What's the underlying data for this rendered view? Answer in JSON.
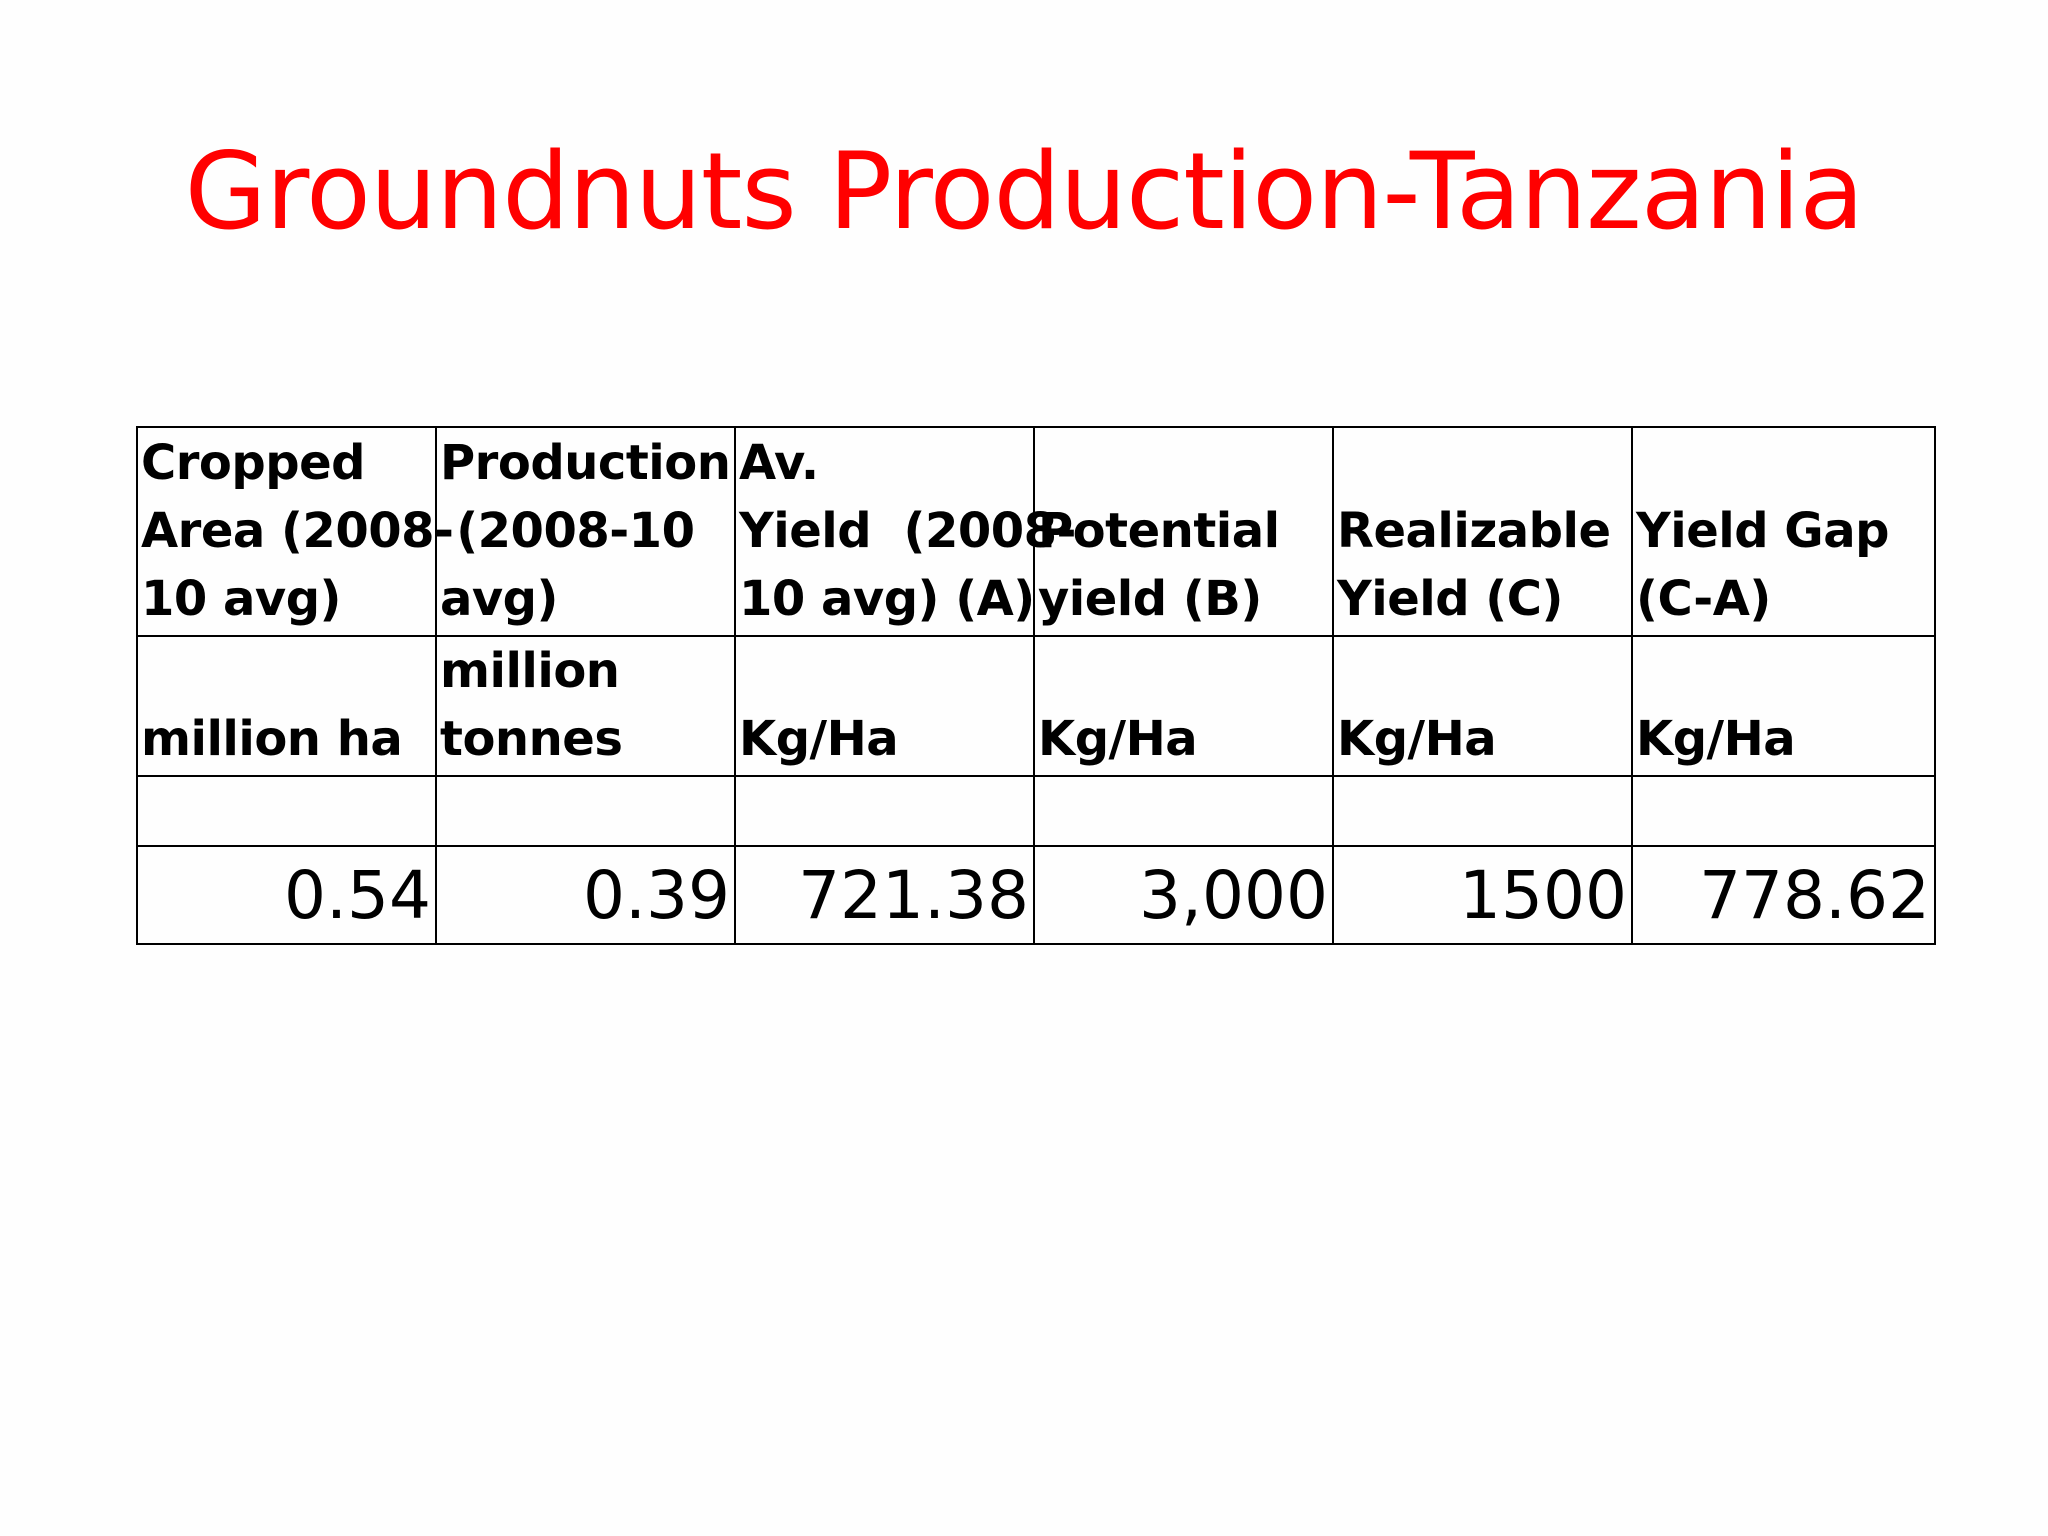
{
  "title": "Groundnuts Production-Tanzania",
  "table": {
    "headers": [
      [
        "Cropped",
        "Area (2008-",
        "10 avg)"
      ],
      [
        "Production",
        " (2008-10",
        "avg)"
      ],
      [
        "Av.",
        "Yield  (2008-",
        "10 avg) (A)"
      ],
      [
        "Potential",
        "yield (B)"
      ],
      [
        "Realizable",
        "Yield (C)"
      ],
      [
        "Yield Gap",
        "(C-A)"
      ]
    ],
    "units": [
      [
        "million ha"
      ],
      [
        "million",
        "tonnes"
      ],
      [
        "Kg/Ha"
      ],
      [
        "Kg/Ha"
      ],
      [
        "Kg/Ha"
      ],
      [
        "Kg/Ha"
      ]
    ],
    "values": [
      "0.54",
      "0.39",
      "721.38",
      "3,000",
      "1500",
      "778.62"
    ]
  }
}
